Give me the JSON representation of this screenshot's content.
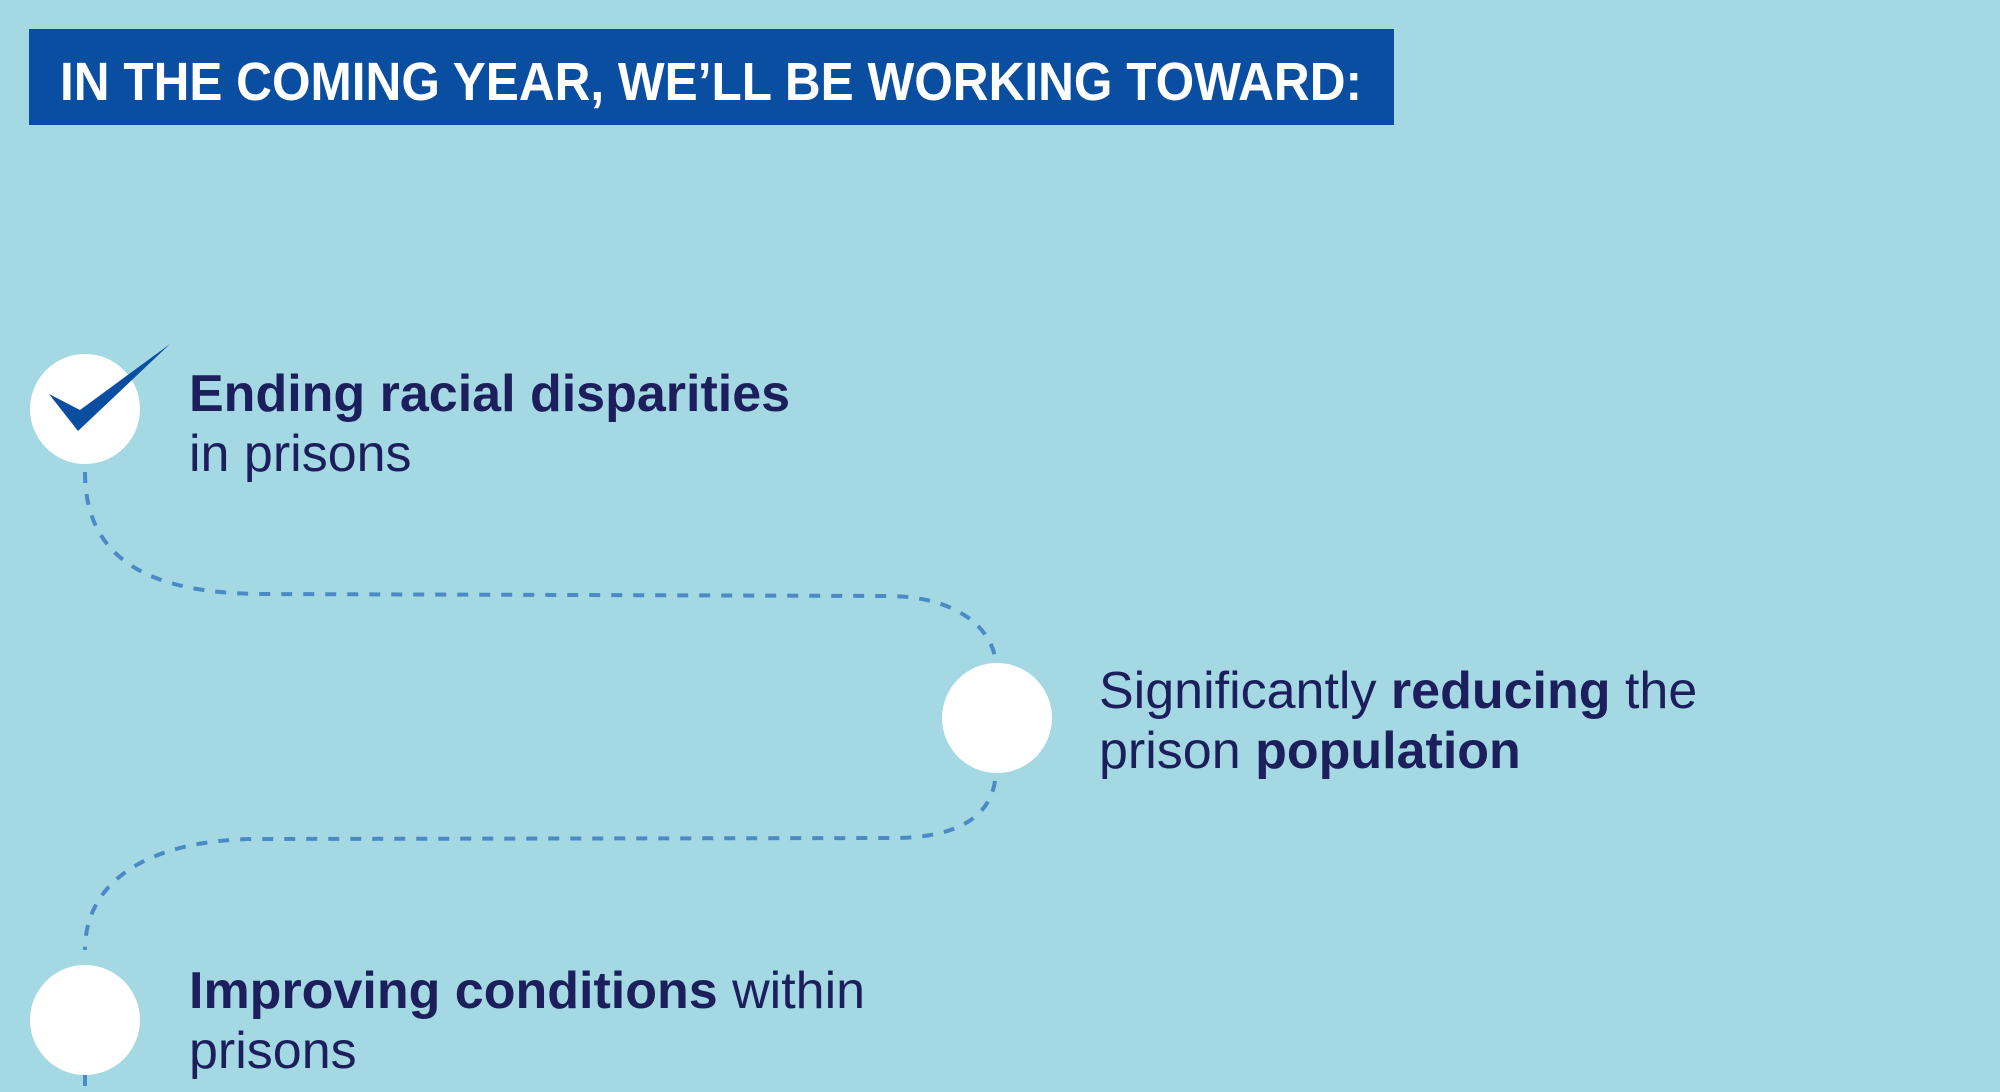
{
  "header": {
    "title": "IN THE COMING YEAR, WE’LL BE WORKING TOWARD:"
  },
  "steps": [
    {
      "checked": true,
      "lines": [
        [
          {
            "text": "Ending racial disparities",
            "bold": true
          }
        ],
        [
          {
            "text": "in prisons",
            "bold": false
          }
        ]
      ]
    },
    {
      "checked": false,
      "lines": [
        [
          {
            "text": "Significantly ",
            "bold": false
          },
          {
            "text": "reducing",
            "bold": true
          },
          {
            "text": " the",
            "bold": false
          }
        ],
        [
          {
            "text": "prison ",
            "bold": false
          },
          {
            "text": "population",
            "bold": true
          }
        ]
      ]
    },
    {
      "checked": false,
      "lines": [
        [
          {
            "text": "Improving conditions",
            "bold": true
          },
          {
            "text": " within",
            "bold": false
          }
        ],
        [
          {
            "text": "prisons",
            "bold": false
          }
        ]
      ]
    }
  ]
}
